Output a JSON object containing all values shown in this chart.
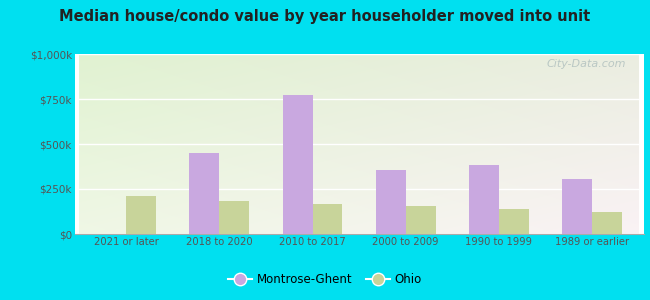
{
  "title": "Median house/condo value by year householder moved into unit",
  "categories": [
    "2021 or later",
    "2018 to 2020",
    "2010 to 2017",
    "2000 to 2009",
    "1990 to 1999",
    "1989 or earlier"
  ],
  "montrose_ghent": [
    0,
    450000,
    775000,
    355000,
    385000,
    305000
  ],
  "ohio": [
    210000,
    185000,
    165000,
    155000,
    140000,
    120000
  ],
  "bar_color_mg": "#c9a8e0",
  "bar_color_ohio": "#c8d49a",
  "ylim": [
    0,
    1000000
  ],
  "yticks": [
    0,
    250000,
    500000,
    750000,
    1000000
  ],
  "ytick_labels": [
    "$0",
    "$250k",
    "$500k",
    "$750k",
    "$1,000k"
  ],
  "background_outer": "#00e0f0",
  "watermark": "City-Data.com",
  "legend_mg": "Montrose-Ghent",
  "legend_ohio": "Ohio",
  "bar_width": 0.32
}
